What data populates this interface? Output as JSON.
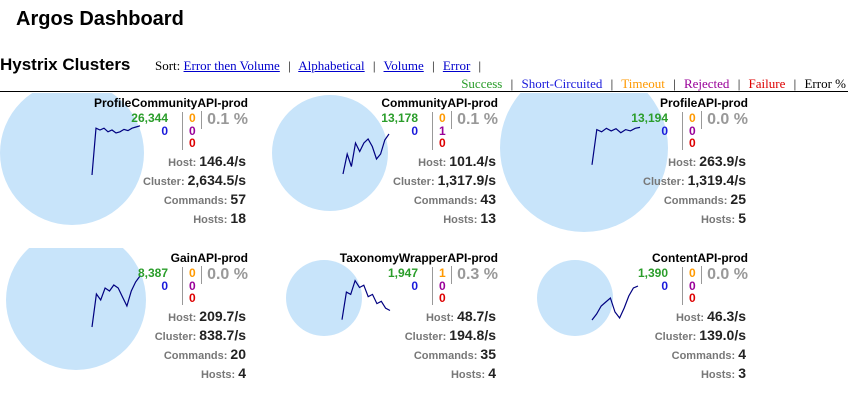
{
  "app": {
    "title": "Argos Dashboard"
  },
  "section": {
    "title": "Hystrix Clusters"
  },
  "sort": {
    "label": "Sort:",
    "options": [
      "Error then Volume",
      "Alphabetical",
      "Volume",
      "Error"
    ]
  },
  "legend": {
    "success": "Success",
    "short_circuited": "Short-Circuited",
    "timeout": "Timeout",
    "rejected": "Rejected",
    "failure": "Failure",
    "error_pct": "Error %"
  },
  "colors": {
    "success": "#2a9d2a",
    "short_circuited": "#1a1adb",
    "timeout": "#ff9900",
    "rejected": "#990099",
    "failure": "#dd0000",
    "circle": "#c8e4fa",
    "sparkline": "#000080"
  },
  "stat_labels": {
    "host": "Host:",
    "cluster": "Cluster:",
    "commands": "Commands:",
    "hosts": "Hosts:"
  },
  "monitors": [
    {
      "name": "ProfileCommunityAPI-prod",
      "success": "26,344",
      "short_circuited": "0",
      "timeout": "0",
      "rejected": "0",
      "failure": "0",
      "error_pct": "0.1 %",
      "host_rate": "146.4/s",
      "cluster_rate": "2,634.5/s",
      "commands": "57",
      "hosts": "18",
      "sparkline": [
        0.9,
        0.12,
        0.15,
        0.12,
        0.18,
        0.15,
        0.2,
        0.18,
        0.14,
        0.16,
        0.12,
        0.1,
        0.08
      ]
    },
    {
      "name": "CommunityAPI-prod",
      "success": "13,178",
      "short_circuited": "0",
      "timeout": "0",
      "rejected": "1",
      "failure": "0",
      "error_pct": "0.1 %",
      "host_rate": "101.4/s",
      "cluster_rate": "1,317.9/s",
      "commands": "43",
      "hosts": "13",
      "sparkline": [
        0.9,
        0.5,
        0.75,
        0.28,
        0.45,
        0.28,
        0.2,
        0.35,
        0.6,
        0.5,
        0.22,
        0.1
      ]
    },
    {
      "name": "ProfileAPI-prod",
      "success": "13,194",
      "short_circuited": "0",
      "timeout": "0",
      "rejected": "0",
      "failure": "0",
      "error_pct": "0.0 %",
      "host_rate": "263.9/s",
      "cluster_rate": "1,319.4/s",
      "commands": "25",
      "hosts": "5",
      "sparkline": [
        0.95,
        0.15,
        0.2,
        0.12,
        0.18,
        0.13,
        0.22,
        0.15,
        0.18,
        0.12,
        0.1
      ]
    },
    {
      "name": "GainAPI-prod",
      "success": "8,387",
      "short_circuited": "0",
      "timeout": "0",
      "rejected": "0",
      "failure": "0",
      "error_pct": "0.0 %",
      "host_rate": "209.7/s",
      "cluster_rate": "838.7/s",
      "commands": "20",
      "hosts": "4",
      "sparkline": [
        0.95,
        0.4,
        0.5,
        0.3,
        0.35,
        0.25,
        0.3,
        0.45,
        0.6,
        0.35,
        0.2,
        0.1
      ]
    },
    {
      "name": "TaxonomyWrapperAPI-prod",
      "success": "1,947",
      "short_circuited": "0",
      "timeout": "1",
      "rejected": "0",
      "failure": "0",
      "error_pct": "0.3 %",
      "host_rate": "48.7/s",
      "cluster_rate": "194.8/s",
      "commands": "35",
      "hosts": "4",
      "sparkline": [
        0.95,
        0.35,
        0.4,
        0.1,
        0.25,
        0.2,
        0.45,
        0.4,
        0.6,
        0.55,
        0.7,
        0.75
      ]
    },
    {
      "name": "ContentAPI-prod",
      "success": "1,390",
      "short_circuited": "0",
      "timeout": "0",
      "rejected": "0",
      "failure": "0",
      "error_pct": "0.0 %",
      "host_rate": "46.3/s",
      "cluster_rate": "139.0/s",
      "commands": "4",
      "hosts": "3",
      "sparkline": [
        0.9,
        0.75,
        0.55,
        0.45,
        0.35,
        0.7,
        0.85,
        0.6,
        0.3,
        0.1,
        0.05
      ]
    }
  ]
}
